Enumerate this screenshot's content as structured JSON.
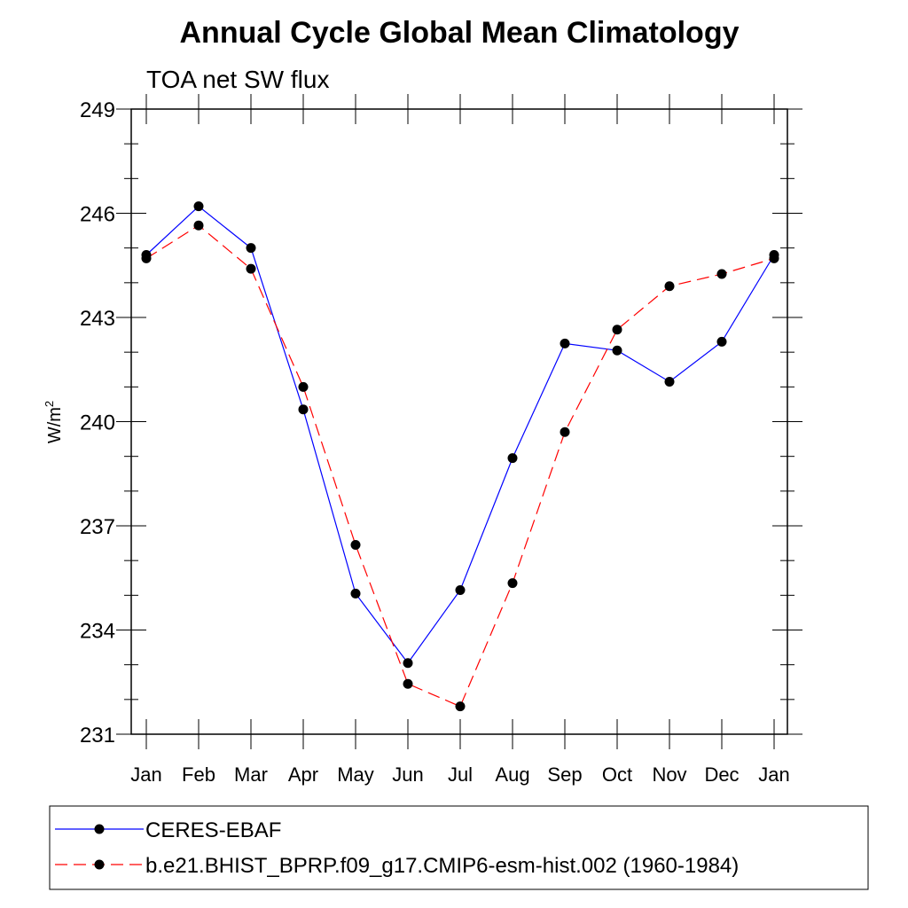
{
  "chart_data": {
    "type": "line",
    "title": "Annual Cycle Global Mean Climatology",
    "subtitle": "TOA net SW flux",
    "ylabel": "W/m",
    "ylabel_superscript": "2",
    "xlabel": "",
    "categories": [
      "Jan",
      "Feb",
      "Mar",
      "Apr",
      "May",
      "Jun",
      "Jul",
      "Aug",
      "Sep",
      "Oct",
      "Nov",
      "Dec",
      "Jan"
    ],
    "ylim": [
      231,
      249
    ],
    "yticks": [
      231,
      234,
      237,
      240,
      243,
      246,
      249
    ],
    "ytick_labels": [
      "231",
      "234",
      "237",
      "240",
      "243",
      "246",
      "249"
    ],
    "grid": false,
    "legend_position": "bottom",
    "series": [
      {
        "name": "CERES-EBAF",
        "color": "#0000ff",
        "line_style": "solid",
        "marker": "filled-circle",
        "values": [
          244.8,
          246.2,
          245.0,
          240.35,
          235.05,
          233.05,
          235.15,
          238.95,
          242.25,
          242.05,
          241.15,
          242.3,
          244.8
        ]
      },
      {
        "name": "b.e21.BHIST_BPRP.f09_g17.CMIP6-esm-hist.002 (1960-1984)",
        "color": "#ff0000",
        "line_style": "dashed",
        "marker": "filled-circle",
        "values": [
          244.7,
          245.65,
          244.4,
          241.0,
          236.45,
          232.45,
          231.8,
          235.35,
          239.7,
          242.65,
          243.9,
          244.25,
          244.7
        ]
      }
    ]
  }
}
